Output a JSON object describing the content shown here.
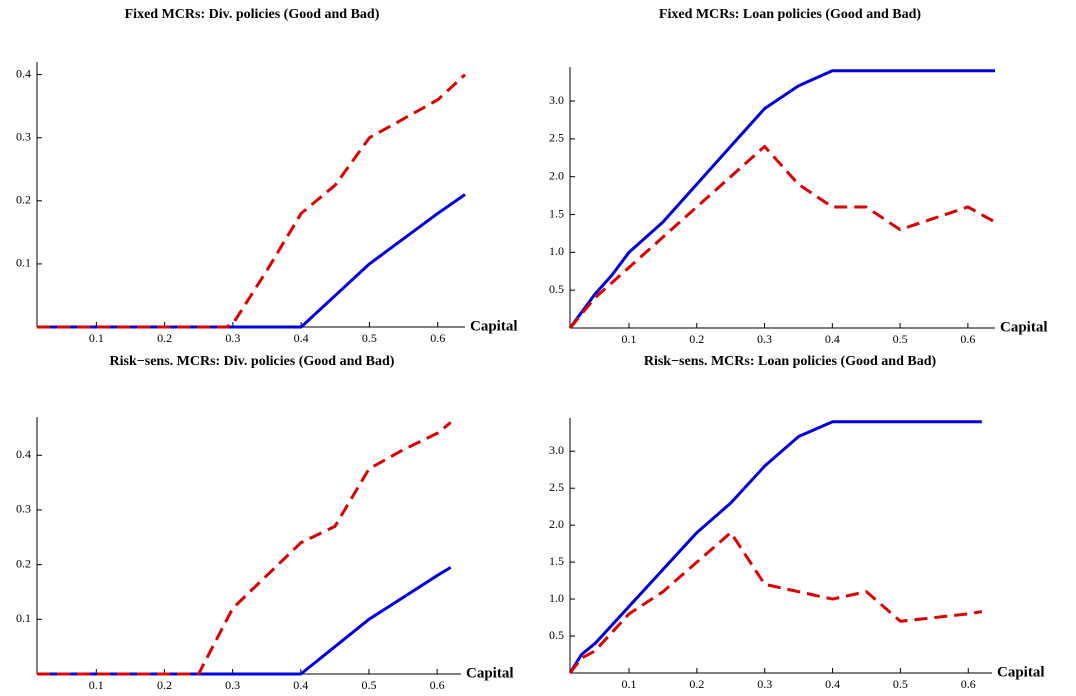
{
  "chart_data": [
    {
      "type": "line",
      "title": "Fixed MCRs: Div. policies (Good and Bad)",
      "x_label": "Capital",
      "x": [
        0.013,
        0.05,
        0.1,
        0.15,
        0.2,
        0.25,
        0.29,
        0.3,
        0.35,
        0.4,
        0.45,
        0.5,
        0.55,
        0.6,
        0.64
      ],
      "series": [
        {
          "color": "#0000dd",
          "dashed": false,
          "values": [
            0,
            0,
            0,
            0,
            0,
            0,
            0,
            0,
            0,
            0,
            0.05,
            0.1,
            0.14,
            0.18,
            0.21
          ]
        },
        {
          "color": "#dd0000",
          "dashed": true,
          "values": [
            0,
            0,
            0,
            0,
            0,
            0,
            0,
            0.005,
            0.09,
            0.18,
            0.225,
            0.3,
            0.33,
            0.36,
            0.4
          ]
        }
      ],
      "xlim": [
        0.013,
        0.64
      ],
      "ylim": [
        0,
        0.42
      ],
      "xticks": [
        0.1,
        0.2,
        0.3,
        0.4,
        0.5,
        0.6
      ],
      "yticks": [
        0.1,
        0.2,
        0.3,
        0.4
      ]
    },
    {
      "type": "line",
      "title": "Fixed MCRs: Loan policies (Good and Bad)",
      "x_label": "Capital",
      "x": [
        0.013,
        0.05,
        0.075,
        0.1,
        0.15,
        0.2,
        0.25,
        0.3,
        0.35,
        0.4,
        0.45,
        0.5,
        0.55,
        0.6,
        0.64
      ],
      "series": [
        {
          "color": "#0000dd",
          "dashed": false,
          "values": [
            0,
            0.45,
            0.7,
            1.0,
            1.4,
            1.9,
            2.4,
            2.9,
            3.2,
            3.4,
            3.4,
            3.4,
            3.4,
            3.4,
            3.4
          ]
        },
        {
          "color": "#dd0000",
          "dashed": true,
          "values": [
            0,
            0.4,
            0.6,
            0.8,
            1.2,
            1.6,
            2.0,
            2.4,
            1.9,
            1.6,
            1.6,
            1.3,
            1.45,
            1.6,
            1.4
          ]
        }
      ],
      "xlim": [
        0.013,
        0.64
      ],
      "ylim": [
        0,
        3.45
      ],
      "xticks": [
        0.1,
        0.2,
        0.3,
        0.4,
        0.5,
        0.6
      ],
      "yticks": [
        0.5,
        {
          "value": 1,
          "label": "1.0"
        },
        1.5,
        {
          "value": 2,
          "label": "2.0"
        },
        2.5,
        {
          "value": 3,
          "label": "3.0"
        }
      ]
    },
    {
      "type": "line",
      "title": "Risk−sens. MCRs: Div. policies (Good and Bad)",
      "x_label": "Capital",
      "x": [
        0.013,
        0.05,
        0.1,
        0.15,
        0.2,
        0.25,
        0.3,
        0.35,
        0.4,
        0.45,
        0.5,
        0.55,
        0.6,
        0.62
      ],
      "series": [
        {
          "color": "#0000dd",
          "dashed": false,
          "values": [
            0,
            0,
            0,
            0,
            0,
            0,
            0,
            0,
            0,
            0.05,
            0.1,
            0.14,
            0.18,
            0.195
          ]
        },
        {
          "color": "#dd0000",
          "dashed": true,
          "values": [
            0,
            0,
            0,
            0,
            0,
            0,
            0.12,
            0.18,
            0.24,
            0.27,
            0.375,
            0.41,
            0.44,
            0.46
          ]
        }
      ],
      "xlim": [
        0.013,
        0.635
      ],
      "ylim": [
        0,
        0.47
      ],
      "xticks": [
        0.1,
        0.2,
        0.3,
        0.4,
        0.5,
        0.6
      ],
      "yticks": [
        0.1,
        0.2,
        0.3,
        0.4
      ]
    },
    {
      "type": "line",
      "title": "Risk−sens. MCRs: Loan policies (Good and Bad)",
      "x_label": "Capital",
      "x": [
        0.013,
        0.03,
        0.05,
        0.1,
        0.15,
        0.2,
        0.25,
        0.3,
        0.35,
        0.4,
        0.45,
        0.5,
        0.55,
        0.6,
        0.62
      ],
      "series": [
        {
          "color": "#0000dd",
          "dashed": false,
          "values": [
            0,
            0.25,
            0.4,
            0.9,
            1.4,
            1.9,
            2.3,
            2.8,
            3.2,
            3.4,
            3.4,
            3.4,
            3.4,
            3.4,
            3.4
          ]
        },
        {
          "color": "#dd0000",
          "dashed": true,
          "values": [
            0,
            0.2,
            0.3,
            0.8,
            1.1,
            1.5,
            1.9,
            1.2,
            1.1,
            1.0,
            1.1,
            0.7,
            0.75,
            0.8,
            0.83
          ]
        }
      ],
      "xlim": [
        0.013,
        0.635
      ],
      "ylim": [
        0,
        3.45
      ],
      "xticks": [
        0.1,
        0.2,
        0.3,
        0.4,
        0.5,
        0.6
      ],
      "yticks": [
        0.5,
        {
          "value": 1,
          "label": "1.0"
        },
        1.5,
        {
          "value": 2,
          "label": "2.0"
        },
        2.5,
        {
          "value": 3,
          "label": "3.0"
        }
      ]
    }
  ]
}
